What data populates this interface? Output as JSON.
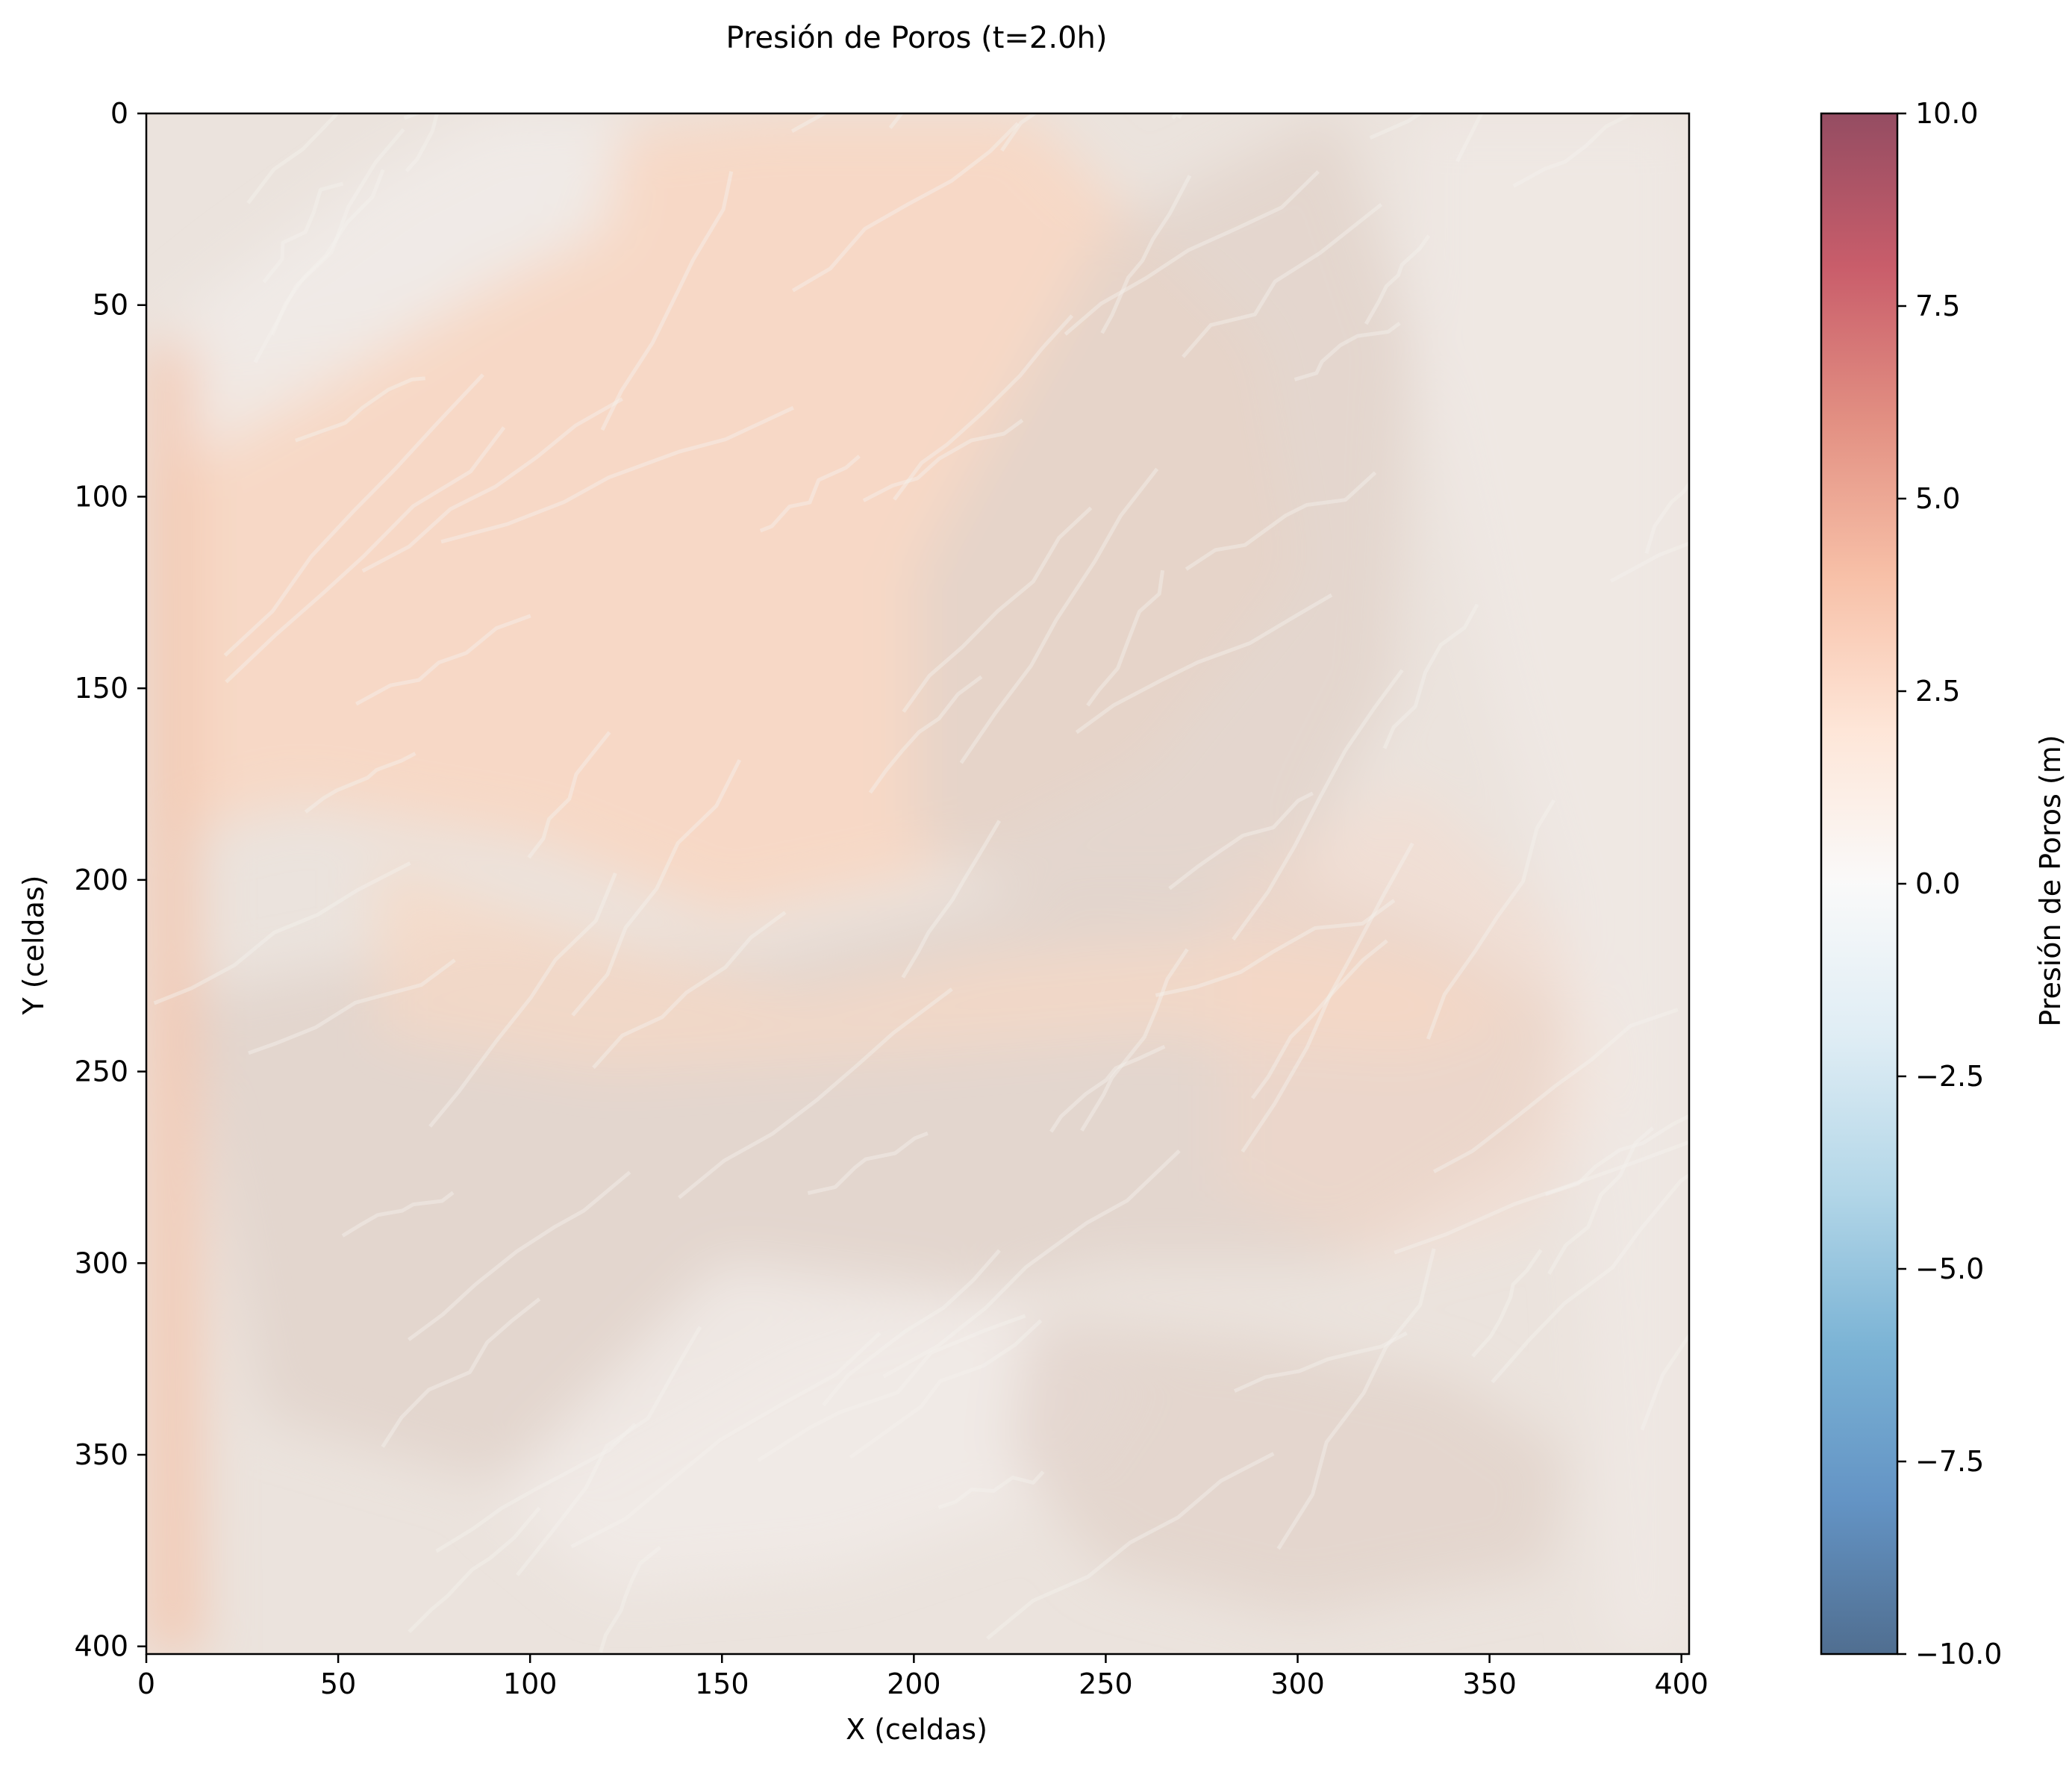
{
  "chart_data": {
    "type": "heatmap",
    "title": "Presión de Poros (t=2.0h)",
    "xlabel": "X (celdas)",
    "ylabel": "Y (celdas)",
    "xlim": [
      0,
      402
    ],
    "ylim": [
      402,
      0
    ],
    "x_ticks": [
      0,
      50,
      100,
      150,
      200,
      250,
      300,
      350,
      400
    ],
    "y_ticks": [
      0,
      50,
      100,
      150,
      200,
      250,
      300,
      350,
      400
    ],
    "y_axis_inverted": true,
    "colorbar": {
      "label": "Presión de Poros (m)",
      "min": -10.0,
      "max": 10.0,
      "ticks": [
        10.0,
        7.5,
        5.0,
        2.5,
        0.0,
        -2.5,
        -5.0,
        -7.5,
        -10.0
      ],
      "tick_labels": [
        "10.0",
        "7.5",
        "5.0",
        "2.5",
        "0.0",
        "−2.5",
        "−5.0",
        "−7.5",
        "−10.0"
      ],
      "colormap": "RdBu_r",
      "colormap_stops": [
        "#053061",
        "#2166ac",
        "#4393c3",
        "#92c5de",
        "#d1e5f0",
        "#f7f7f7",
        "#fddbc7",
        "#f4a582",
        "#d6604d",
        "#b2182b",
        "#67001f"
      ],
      "alpha": 0.7
    },
    "field_summary": "Presión de poros cercana a 0–1.5 m en casi todo el dominio, sobre un sombreado de relieve gris; zonas con presión ligeramente positiva (≈1–2 m) en el cuadrante superior izquierdo, bandas centrales y franja izquierda.",
    "grid": false,
    "legend": "none"
  },
  "colors": {
    "base": "#ebe3dd",
    "warm": "#f8d8c5",
    "warm_strong": "#f3c7b0",
    "neutral_dark": "#e2d3cb",
    "pale": "#f1ebe8",
    "contour": "#f5f1ee"
  }
}
